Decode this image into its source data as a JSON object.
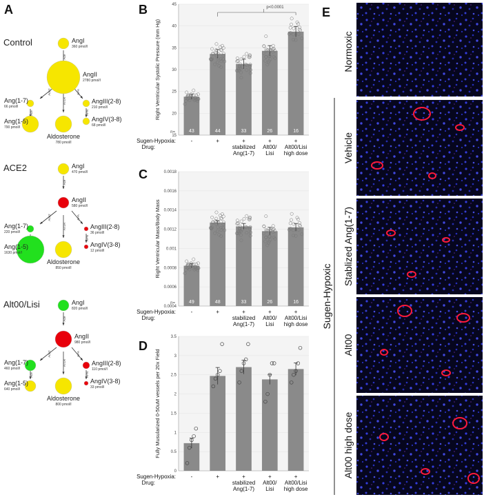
{
  "panel_labels": {
    "a": "A",
    "b": "B",
    "c": "C",
    "d": "D",
    "e": "E"
  },
  "color_legend": {
    "yellow": "#f6e600",
    "red": "#e8000b",
    "green": "#22e01e"
  },
  "pathways": [
    {
      "title": "Control",
      "nodes": [
        {
          "key": "angI",
          "label": "AngI",
          "amount": "360 pmol/l",
          "color": "yellow",
          "size": "s"
        },
        {
          "key": "angII",
          "label": "AngII",
          "amount": "2780 pmol/l",
          "color": "yellow",
          "size": "xl"
        },
        {
          "key": "ang17",
          "label": "Ang(1-7)",
          "amount": "66 pmol/l",
          "color": "yellow",
          "size": "xs"
        },
        {
          "key": "ang15",
          "label": "Ang(1-5)",
          "amount": "790 pmol/l",
          "color": "yellow",
          "size": "m"
        },
        {
          "key": "ang28",
          "label": "AngIII(2-8)",
          "amount": "210 pmol/l",
          "color": "yellow",
          "size": "xs"
        },
        {
          "key": "ang38",
          "label": "AngIV(3-8)",
          "amount": "68 pmol/l",
          "color": "yellow",
          "size": "xs"
        },
        {
          "key": "ald",
          "label": "Aldosterone",
          "amount": "780 pmol/l",
          "color": "yellow",
          "size": "m"
        }
      ]
    },
    {
      "title": "ACE2",
      "nodes": [
        {
          "key": "angI",
          "label": "AngI",
          "amount": "470 pmol/l",
          "color": "yellow",
          "size": "s"
        },
        {
          "key": "angII",
          "label": "AngII",
          "amount": "580 pmol/l",
          "color": "red",
          "size": "s"
        },
        {
          "key": "ang17",
          "label": "Ang(1-7)",
          "amount": "220 pmol/l",
          "color": "green",
          "size": "xs"
        },
        {
          "key": "ang15",
          "label": "Ang(1-5)",
          "amount": "1630 pmol/l",
          "color": "green",
          "size": "l"
        },
        {
          "key": "ang28",
          "label": "AngIII(2-8)",
          "amount": "36 pmol/l",
          "color": "red",
          "size": "xxs"
        },
        {
          "key": "ang38",
          "label": "AngIV(3-8)",
          "amount": "12 pmol/l",
          "color": "red",
          "size": "xxs"
        },
        {
          "key": "ald",
          "label": "Aldosterone",
          "amount": "850 pmol/l",
          "color": "yellow",
          "size": "m"
        }
      ]
    },
    {
      "title": "Alt00/Lisi",
      "nodes": [
        {
          "key": "angI",
          "label": "AngI",
          "amount": "820 pmol/l",
          "color": "green",
          "size": "s"
        },
        {
          "key": "angII",
          "label": "AngII",
          "amount": "980 pmol/l",
          "color": "red",
          "size": "m"
        },
        {
          "key": "ang17",
          "label": "Ang(1-7)",
          "amount": "460 pmol/l",
          "color": "green",
          "size": "s"
        },
        {
          "key": "ang15",
          "label": "Ang(1-5)",
          "amount": "640 pmol/l",
          "color": "yellow",
          "size": "s"
        },
        {
          "key": "ang28",
          "label": "AngIII(2-8)",
          "amount": "110 pmol/l",
          "color": "red",
          "size": "xs"
        },
        {
          "key": "ang38",
          "label": "AngIV(3-8)",
          "amount": "33 pmol/l",
          "color": "red",
          "size": "xxs"
        },
        {
          "key": "ald",
          "label": "Aldosterone",
          "amount": "800 pmol/l",
          "color": "yellow",
          "size": "m"
        }
      ]
    }
  ],
  "enzymes": {
    "ace": "Ace",
    "ace2": "Ace2",
    "at1r": "AT1R",
    "apa": "APA",
    "apn": "APN"
  },
  "chart_common": {
    "row1_label": "Sugen-Hypoxia:",
    "row2_label": "Drug:",
    "sugen": [
      "-",
      "+",
      "+",
      "+",
      "+"
    ],
    "drug": [
      [
        ""
      ],
      [
        ""
      ],
      [
        "stabilized",
        "Ang(1-7)"
      ],
      [
        "Alt00/",
        "Lisi"
      ],
      [
        "Alt00/Lisi",
        "high dose"
      ]
    ]
  },
  "chart_data": [
    {
      "panel": "B",
      "type": "bar",
      "ylabel": "Right Ventricular Systolic Pressure (mm Hg)",
      "ylim": [
        15,
        45
      ],
      "yticks": [
        15,
        20,
        25,
        30,
        35,
        40,
        45
      ],
      "ytick_labels": [
        "15",
        "20",
        "25",
        "30",
        "35",
        "40",
        "45"
      ],
      "values": [
        23.8,
        33.6,
        31.3,
        34.3,
        38.7
      ],
      "errors": [
        0.6,
        1.0,
        1.1,
        1.2,
        1.2
      ],
      "n_label": "n=",
      "n": [
        "43",
        "44",
        "33",
        "26",
        "16"
      ],
      "significance": "p<0.0001"
    },
    {
      "panel": "C",
      "type": "bar",
      "ylabel": "Right Ventricular Mass/Body Mass",
      "ylim": [
        0.0004,
        0.0018
      ],
      "yticks": [
        0.0004,
        0.0006,
        0.0008,
        0.001,
        0.0012,
        0.0014,
        0.0016,
        0.0018
      ],
      "ytick_labels": [
        "0.0004",
        "0.0006",
        "0.0008",
        "0.001",
        "0.0012",
        "0.0014",
        "0.0016",
        "0.0018"
      ],
      "values": [
        0.00082,
        0.00127,
        0.00123,
        0.00118,
        0.00122
      ],
      "errors": [
        2e-05,
        2e-05,
        3e-05,
        4e-05,
        4e-05
      ],
      "n_label": "n=",
      "n": [
        "49",
        "48",
        "33",
        "26",
        "16"
      ]
    },
    {
      "panel": "D",
      "type": "bar",
      "ylabel": "Fully Musularized 0-50uM vessels per 20x Field",
      "ylim": [
        0,
        3.5
      ],
      "yticks": [
        0,
        0.5,
        1,
        1.5,
        2,
        2.5,
        3,
        3.5
      ],
      "ytick_labels": [
        "0",
        "0.5",
        "1",
        "1.5",
        "2",
        "2.5",
        "3",
        "3.5"
      ],
      "values": [
        0.72,
        2.47,
        2.7,
        2.38,
        2.65
      ],
      "errors": [
        0.13,
        0.22,
        0.18,
        0.13,
        0.16
      ],
      "points": [
        [
          0.2,
          0.6,
          0.8,
          0.9,
          1.1
        ],
        [
          2.2,
          2.4,
          2.5,
          2.6,
          3.3
        ],
        [
          2.3,
          2.6,
          2.8,
          2.9,
          3.3
        ],
        [
          1.8,
          2.0,
          2.5,
          2.8,
          2.8
        ],
        [
          2.3,
          2.5,
          2.6,
          2.8,
          3.2
        ]
      ]
    }
  ],
  "panel_e": {
    "top_label": "Normoxic",
    "group_label": "Sugen-Hypoxic",
    "images": [
      "Vehicle",
      "Stablized Ang(1-7)",
      "Alt00",
      "Alt00 high dose"
    ]
  }
}
